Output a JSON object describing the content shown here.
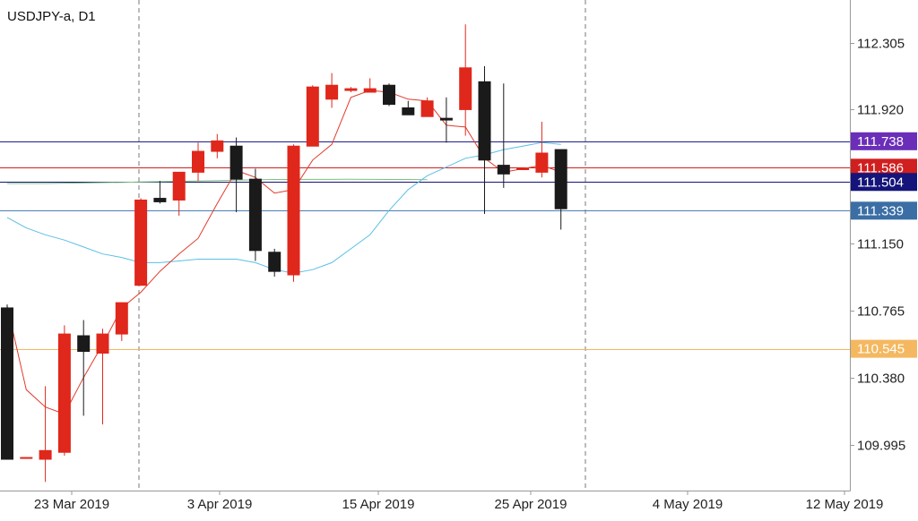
{
  "window_title": "USDJPY-a, D1",
  "chart_data": {
    "type": "candlestick",
    "symbol": "USDJPY-a",
    "timeframe": "D1",
    "title": "USDJPY-a, D1",
    "y_ticks": [
      112.305,
      111.92,
      111.15,
      110.765,
      110.38,
      109.995
    ],
    "x_ticks": [
      "23 Mar 2019",
      "3 Apr 2019",
      "15 Apr 2019",
      "25 Apr 2019",
      "4 May 2019",
      "12 May 2019"
    ],
    "ylim": [
      109.73,
      112.55
    ],
    "candles": [
      {
        "o": 110.78,
        "h": 110.8,
        "l": 109.91,
        "c": 109.91
      },
      {
        "o": 109.92,
        "h": 109.92,
        "l": 109.92,
        "c": 109.92
      },
      {
        "o": 109.91,
        "h": 110.33,
        "l": 109.78,
        "c": 109.96
      },
      {
        "o": 109.95,
        "h": 110.68,
        "l": 109.93,
        "c": 110.63
      },
      {
        "o": 110.62,
        "h": 110.71,
        "l": 110.16,
        "c": 110.53
      },
      {
        "o": 110.52,
        "h": 110.66,
        "l": 110.11,
        "c": 110.63
      },
      {
        "o": 110.63,
        "h": 110.8,
        "l": 110.59,
        "c": 110.81
      },
      {
        "o": 110.91,
        "h": 111.41,
        "l": 110.91,
        "c": 111.4
      },
      {
        "o": 111.41,
        "h": 111.51,
        "l": 111.38,
        "c": 111.39
      },
      {
        "o": 111.4,
        "h": 111.54,
        "l": 111.31,
        "c": 111.56
      },
      {
        "o": 111.56,
        "h": 111.73,
        "l": 111.51,
        "c": 111.68
      },
      {
        "o": 111.68,
        "h": 111.78,
        "l": 111.64,
        "c": 111.74
      },
      {
        "o": 111.71,
        "h": 111.76,
        "l": 111.33,
        "c": 111.52
      },
      {
        "o": 111.52,
        "h": 111.58,
        "l": 111.05,
        "c": 111.11
      },
      {
        "o": 111.1,
        "h": 111.12,
        "l": 110.96,
        "c": 110.99
      },
      {
        "o": 110.97,
        "h": 111.72,
        "l": 110.93,
        "c": 111.71
      },
      {
        "o": 111.71,
        "h": 112.06,
        "l": 111.71,
        "c": 112.05
      },
      {
        "o": 111.98,
        "h": 112.13,
        "l": 111.93,
        "c": 112.06
      },
      {
        "o": 112.03,
        "h": 112.05,
        "l": 112.02,
        "c": 112.04
      },
      {
        "o": 112.02,
        "h": 112.1,
        "l": 112.02,
        "c": 112.04
      },
      {
        "o": 112.06,
        "h": 112.07,
        "l": 111.94,
        "c": 111.95
      },
      {
        "o": 111.93,
        "h": 111.97,
        "l": 111.89,
        "c": 111.89
      },
      {
        "o": 111.88,
        "h": 111.99,
        "l": 111.88,
        "c": 111.97
      },
      {
        "o": 111.87,
        "h": 111.99,
        "l": 111.73,
        "c": 111.86
      },
      {
        "o": 111.92,
        "h": 112.41,
        "l": 111.77,
        "c": 112.16
      },
      {
        "o": 112.08,
        "h": 112.17,
        "l": 111.32,
        "c": 111.63
      },
      {
        "o": 111.6,
        "h": 112.07,
        "l": 111.47,
        "c": 111.55
      },
      {
        "o": 111.58,
        "h": 111.58,
        "l": 111.58,
        "c": 111.58
      },
      {
        "o": 111.56,
        "h": 111.85,
        "l": 111.53,
        "c": 111.67
      },
      {
        "o": 111.69,
        "h": 111.69,
        "l": 111.23,
        "c": 111.35
      }
    ],
    "ma_fast": [
      110.79,
      110.31,
      110.21,
      110.17,
      110.38,
      110.57,
      110.78,
      110.87,
      110.99,
      111.09,
      111.18,
      111.38,
      111.57,
      111.53,
      111.44,
      111.46,
      111.63,
      111.72,
      111.99,
      112.03,
      112.02,
      111.98,
      111.97,
      111.83,
      111.82,
      111.64,
      111.56,
      111.58,
      111.6,
      111.56
    ],
    "ma_slow": [
      111.3,
      111.24,
      111.2,
      111.17,
      111.13,
      111.09,
      111.07,
      111.04,
      111.04,
      111.05,
      111.06,
      111.06,
      111.06,
      111.04,
      111.0,
      110.98,
      111.0,
      111.04,
      111.12,
      111.2,
      111.34,
      111.46,
      111.54,
      111.59,
      111.64,
      111.66,
      111.69,
      111.71,
      111.73,
      111.72
    ],
    "ma_long": [
      111.495,
      111.495,
      111.495,
      111.497,
      111.498,
      111.5,
      111.502,
      111.504,
      111.506,
      111.508,
      111.51,
      111.512,
      111.514,
      111.516,
      111.518,
      111.518,
      111.519,
      111.519,
      111.52,
      111.519,
      111.518,
      111.518,
      111.517
    ],
    "price_lines": [
      {
        "value": 111.738,
        "label": "111.738",
        "color": "#1e1e8c",
        "tag_color": "#6b2eb8"
      },
      {
        "value": 111.586,
        "label": "111.586",
        "color": "#d01f1f",
        "tag_color": "#d01f1f"
      },
      {
        "value": 111.504,
        "label": "111.504",
        "color": "#14147a",
        "tag_color": "#14147a"
      },
      {
        "value": 111.339,
        "label": "111.339",
        "color": "#4a7fb5",
        "tag_color": "#3a6ea5"
      },
      {
        "value": 110.545,
        "label": "110.545",
        "color": "#f4b860",
        "tag_color": "#f4b860"
      }
    ],
    "colors": {
      "bull": "#e0271b",
      "bear": "#1a1a1a",
      "ma_fast": "#e23a2c",
      "ma_slow": "#5bbfe6",
      "ma_long": "#7ec07e",
      "grid_separator": "#777777",
      "axis": "#999999"
    }
  }
}
